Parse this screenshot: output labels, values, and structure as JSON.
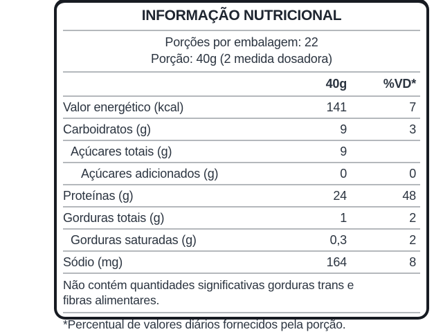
{
  "label": {
    "title": "INFORMAÇÃO NUTRICIONAL",
    "servings_per_package": "Porções por embalagem: 22",
    "serving_size": "Porção: 40g (2 medida dosadora)",
    "columns": {
      "amount": "40g",
      "dv": "%VD*"
    },
    "rows": [
      {
        "name": "Valor energético (kcal)",
        "amount": "141",
        "dv": "7",
        "indent": 0
      },
      {
        "name": "Carboidratos (g)",
        "amount": "9",
        "dv": "3",
        "indent": 0
      },
      {
        "name": "Açúcares totais (g)",
        "amount": "9",
        "dv": "",
        "indent": 1
      },
      {
        "name": "Açúcares adicionados (g)",
        "amount": "0",
        "dv": "0",
        "indent": 2
      },
      {
        "name": "Proteínas (g)",
        "amount": "24",
        "dv": "48",
        "indent": 0
      },
      {
        "name": "Gorduras totais (g)",
        "amount": "1",
        "dv": "2",
        "indent": 0
      },
      {
        "name": "Gorduras saturadas (g)",
        "amount": "0,3",
        "dv": "2",
        "indent": 1
      },
      {
        "name": "Sódio (mg)",
        "amount": "164",
        "dv": "8",
        "indent": 0
      }
    ],
    "note": "Não contém quantidades significativas gorduras trans e fibras alimentares.",
    "footnote": "*Percentual de valores diários fornecidos pela porção.",
    "colors": {
      "text": "#2b3440",
      "rule": "#b4b8bc",
      "border": "#171b22",
      "background": "#ffffff"
    }
  }
}
